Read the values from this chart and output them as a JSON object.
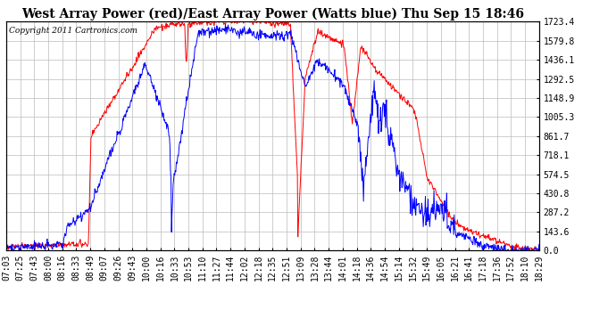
{
  "title": "West Array Power (red)/East Array Power (Watts blue) Thu Sep 15 18:46",
  "copyright": "Copyright 2011 Cartronics.com",
  "yticks": [
    0.0,
    143.6,
    287.2,
    430.8,
    574.5,
    718.1,
    861.7,
    1005.3,
    1148.9,
    1292.5,
    1436.1,
    1579.8,
    1723.4
  ],
  "ymax": 1723.4,
  "ymin": 0.0,
  "bg_color": "#ffffff",
  "grid_color": "#bbbbbb",
  "title_fontsize": 10,
  "copyright_fontsize": 6.5,
  "tick_fontsize": 7,
  "xtick_labels": [
    "07:03",
    "07:25",
    "07:43",
    "08:00",
    "08:16",
    "08:33",
    "08:49",
    "09:07",
    "09:26",
    "09:43",
    "10:00",
    "10:16",
    "10:33",
    "10:53",
    "11:10",
    "11:27",
    "11:44",
    "12:02",
    "12:18",
    "12:35",
    "12:51",
    "13:09",
    "13:28",
    "13:44",
    "14:01",
    "14:18",
    "14:36",
    "14:54",
    "15:14",
    "15:32",
    "15:49",
    "16:05",
    "16:21",
    "16:41",
    "17:18",
    "17:36",
    "17:52",
    "18:10",
    "18:29"
  ],
  "n_points": 1000
}
